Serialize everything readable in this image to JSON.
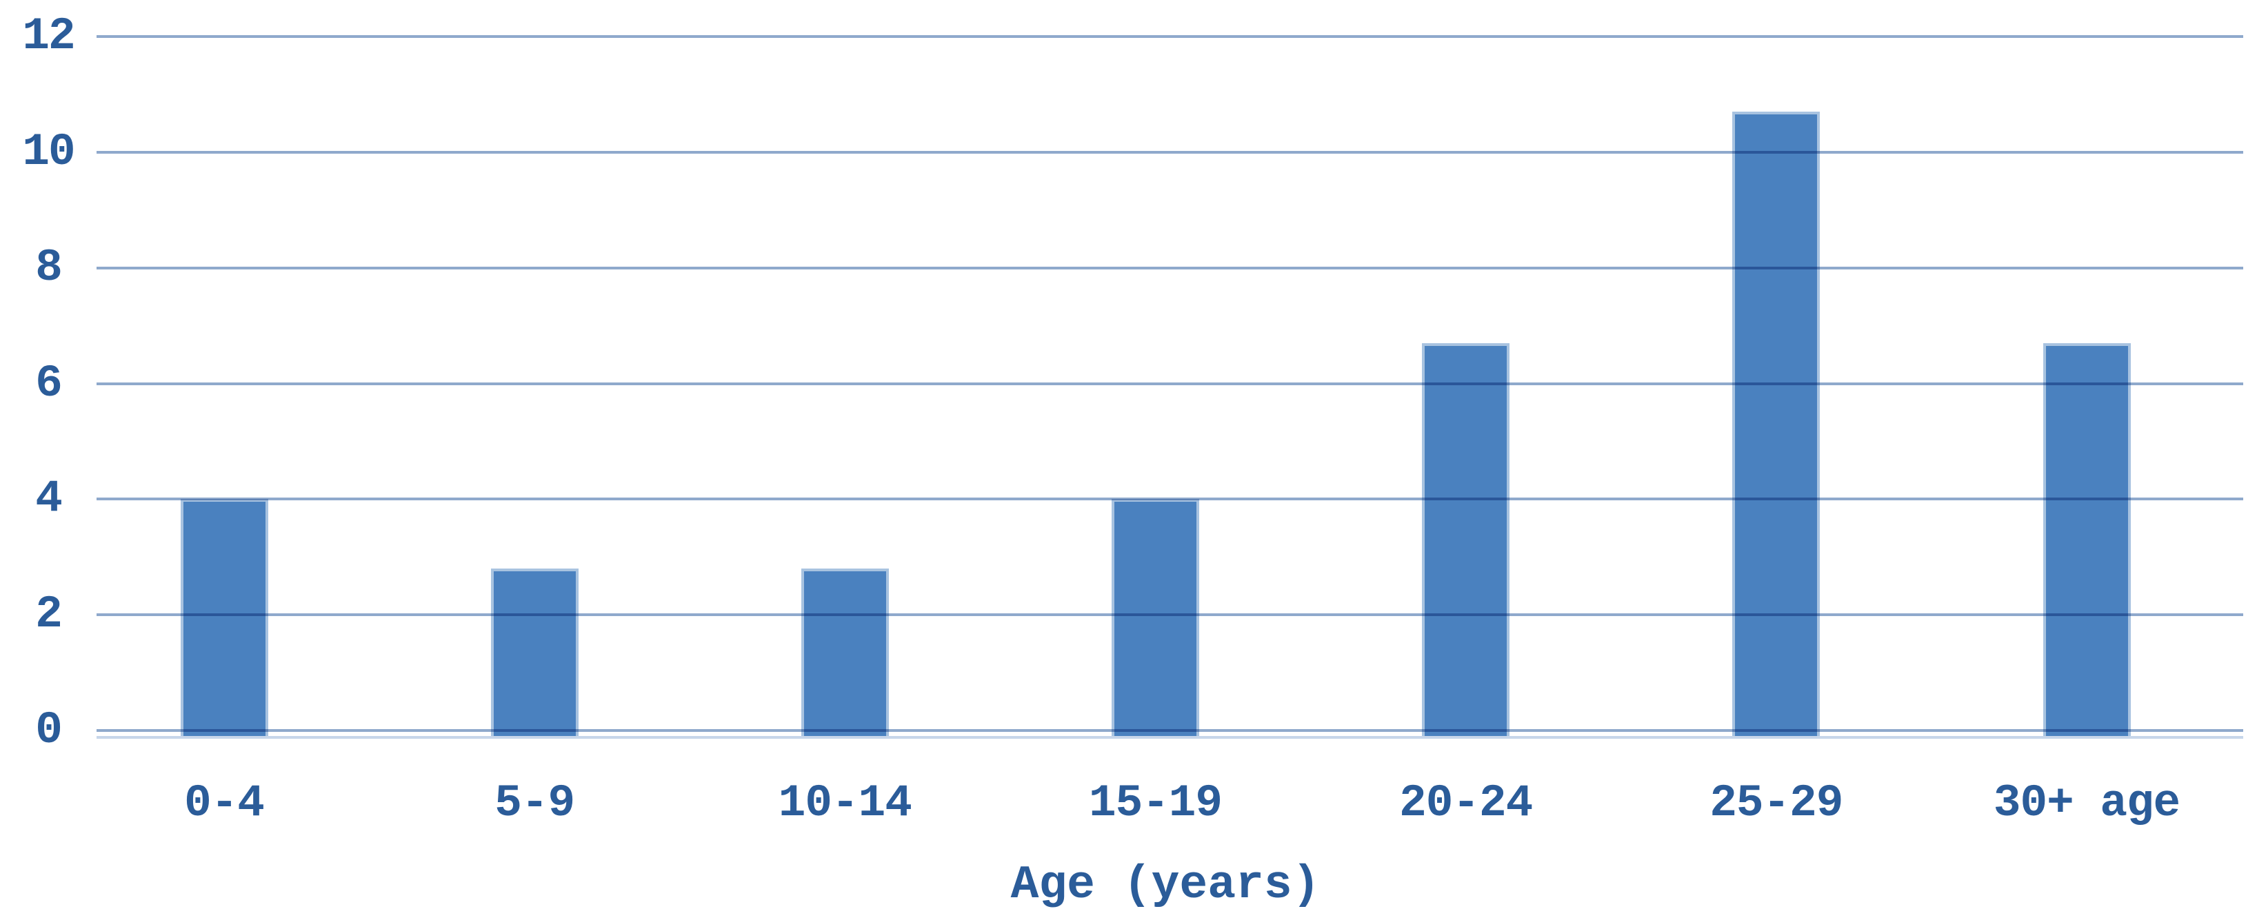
{
  "chart_data": {
    "type": "bar",
    "categories": [
      "0-4",
      "5-9",
      "10-14",
      "15-19",
      "20-24",
      "25-29",
      "30+ age"
    ],
    "values": [
      4,
      2.8,
      2.8,
      4,
      6.7,
      10.7,
      6.7
    ],
    "title": "",
    "xlabel": "Age (years)",
    "ylabel": "",
    "ylim": [
      0,
      12
    ],
    "yticks": [
      0,
      2,
      4,
      6,
      8,
      10,
      12
    ],
    "grid": true,
    "legend_position": "none",
    "colors": {
      "bar_fill": "#4a81bf",
      "bar_edge": "#a8c3e0",
      "gridline": "#8fa9cc",
      "axis_line_light": "#c7d6ea",
      "text": "#2b5c99"
    }
  }
}
